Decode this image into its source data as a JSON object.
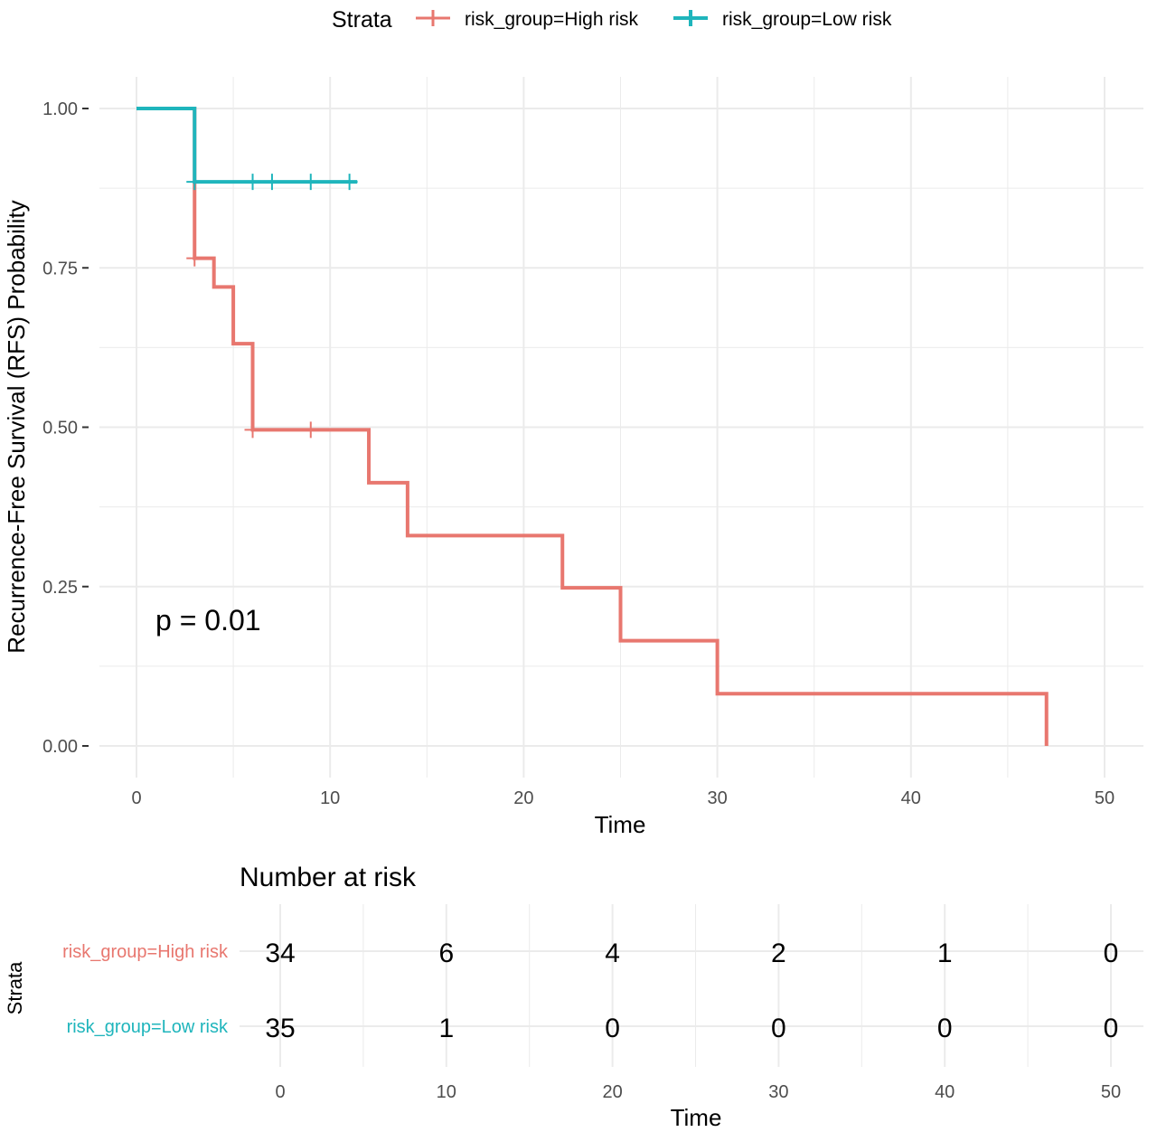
{
  "chart_data": [
    {
      "type": "line",
      "subtype": "kaplan-meier step",
      "legend": {
        "title": "Strata",
        "placement": "top",
        "entries": [
          "risk_group=High risk",
          "risk_group=Low risk"
        ]
      },
      "xlabel": "Time",
      "ylabel": "Recurrence-Free Survival (RFS) Probability",
      "xlim": [
        0,
        50
      ],
      "ylim": [
        0,
        1
      ],
      "xticks": [
        "0",
        "10",
        "20",
        "30",
        "40",
        "50"
      ],
      "yticks": [
        "0.00",
        "0.25",
        "0.50",
        "0.75",
        "1.00"
      ],
      "annotation": "p = 0.01",
      "series": [
        {
          "name": "risk_group=High risk",
          "color": "#E8776F",
          "steps": [
            [
              0,
              1.0
            ],
            [
              3,
              0.765
            ],
            [
              4,
              0.72
            ],
            [
              5,
              0.631
            ],
            [
              6,
              0.496
            ],
            [
              12,
              0.413
            ],
            [
              14,
              0.33
            ],
            [
              22,
              0.248
            ],
            [
              25,
              0.165
            ],
            [
              30,
              0.082
            ],
            [
              47,
              0
            ]
          ],
          "end": 47,
          "censor": [
            [
              3,
              0.765
            ],
            [
              6,
              0.496
            ],
            [
              9,
              0.496
            ]
          ]
        },
        {
          "name": "risk_group=Low risk",
          "color": "#1FB5BC",
          "steps": [
            [
              0,
              1.0
            ],
            [
              3,
              0.885
            ]
          ],
          "end": 11.4,
          "censor": [
            [
              3,
              0.885
            ],
            [
              6,
              0.885
            ],
            [
              7,
              0.885
            ],
            [
              9,
              0.885
            ],
            [
              11,
              0.885
            ]
          ]
        }
      ]
    },
    {
      "type": "table",
      "title": "Number at risk",
      "ylabel": "Strata",
      "xlabel": "Time",
      "times": [
        0,
        10,
        20,
        30,
        40,
        50
      ],
      "xticks": [
        "0",
        "10",
        "20",
        "30",
        "40",
        "50"
      ],
      "rows": [
        {
          "name": "risk_group=High risk",
          "color": "#E8776F",
          "values": [
            "34",
            "6",
            "4",
            "2",
            "1",
            "0"
          ]
        },
        {
          "name": "risk_group=Low risk",
          "color": "#1FB5BC",
          "values": [
            "35",
            "1",
            "0",
            "0",
            "0",
            "0"
          ]
        }
      ]
    }
  ]
}
